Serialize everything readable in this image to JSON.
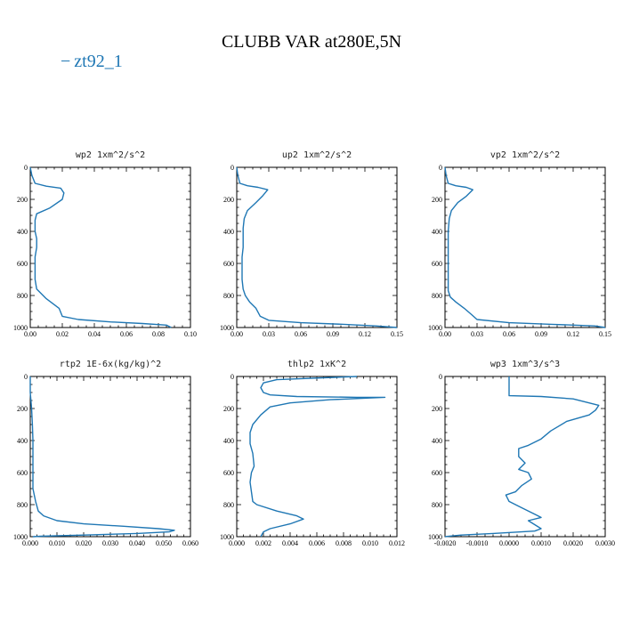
{
  "title": "CLUBB VAR at280E,5N",
  "legend": {
    "label": "zt92_1",
    "dash": "−",
    "color": "#1f77b4"
  },
  "chart_data": [
    {
      "type": "line",
      "title": "wp2  1xm^2/s^2",
      "xlim": [
        0,
        0.1
      ],
      "ylim": [
        1000,
        0
      ],
      "xticks": [
        0.0,
        0.02,
        0.04,
        0.06,
        0.08,
        0.1
      ],
      "xtick_labels": [
        "0.00",
        "0.02",
        "0.04",
        "0.06",
        "0.08",
        "0.10"
      ],
      "yticks": [
        0,
        200,
        400,
        600,
        800,
        1000
      ],
      "ytick_labels": [
        "0",
        "200",
        "400",
        "600",
        "800",
        "1000"
      ],
      "series": [
        {
          "color": "#1f77b4",
          "x": [
            0.0,
            0.001,
            0.003,
            0.01,
            0.019,
            0.021,
            0.02,
            0.012,
            0.004,
            0.003,
            0.003,
            0.004,
            0.004,
            0.003,
            0.003,
            0.003,
            0.003,
            0.004,
            0.01,
            0.018,
            0.02,
            0.03,
            0.05,
            0.07,
            0.085,
            0.088
          ],
          "y": [
            0,
            50,
            100,
            118,
            130,
            160,
            200,
            255,
            290,
            330,
            400,
            445,
            500,
            560,
            600,
            650,
            700,
            760,
            820,
            880,
            930,
            950,
            965,
            975,
            985,
            1000
          ]
        }
      ]
    },
    {
      "type": "line",
      "title": "up2  1xm^2/s^2",
      "xlim": [
        0,
        0.15
      ],
      "ylim": [
        1000,
        0
      ],
      "xticks": [
        0.0,
        0.03,
        0.06,
        0.09,
        0.12,
        0.15
      ],
      "xtick_labels": [
        "0.00",
        "0.03",
        "0.06",
        "0.09",
        "0.12",
        "0.15"
      ],
      "yticks": [
        0,
        200,
        400,
        600,
        800,
        1000
      ],
      "ytick_labels": [
        "0",
        "200",
        "400",
        "600",
        "800",
        "1000"
      ],
      "series": [
        {
          "color": "#1f77b4",
          "x": [
            0.0,
            0.001,
            0.003,
            0.01,
            0.02,
            0.029,
            0.024,
            0.018,
            0.01,
            0.007,
            0.006,
            0.006,
            0.006,
            0.005,
            0.005,
            0.005,
            0.006,
            0.008,
            0.012,
            0.018,
            0.022,
            0.03,
            0.06,
            0.1,
            0.13,
            0.15
          ],
          "y": [
            0,
            50,
            100,
            115,
            125,
            140,
            180,
            220,
            270,
            320,
            380,
            450,
            500,
            560,
            620,
            700,
            760,
            800,
            840,
            880,
            930,
            955,
            970,
            980,
            990,
            1000
          ]
        }
      ]
    },
    {
      "type": "line",
      "title": "vp2  1xm^2/s^2",
      "xlim": [
        0,
        0.15
      ],
      "ylim": [
        1000,
        0
      ],
      "xticks": [
        0.0,
        0.03,
        0.06,
        0.09,
        0.12,
        0.15
      ],
      "xtick_labels": [
        "0.00",
        "0.03",
        "0.06",
        "0.09",
        "0.12",
        "0.15"
      ],
      "yticks": [
        0,
        200,
        400,
        600,
        800,
        1000
      ],
      "ytick_labels": [
        "0",
        "200",
        "400",
        "600",
        "800",
        "1000"
      ],
      "series": [
        {
          "color": "#1f77b4",
          "x": [
            0.0,
            0.001,
            0.003,
            0.01,
            0.02,
            0.026,
            0.02,
            0.012,
            0.006,
            0.004,
            0.003,
            0.003,
            0.003,
            0.003,
            0.003,
            0.003,
            0.005,
            0.01,
            0.018,
            0.025,
            0.03,
            0.06,
            0.1,
            0.14,
            0.15
          ],
          "y": [
            0,
            50,
            100,
            115,
            125,
            140,
            180,
            220,
            270,
            320,
            400,
            470,
            550,
            620,
            700,
            770,
            810,
            840,
            880,
            920,
            950,
            970,
            980,
            990,
            1000
          ]
        }
      ]
    },
    {
      "type": "line",
      "title": "rtp2  1E-6x(kg/kg)^2",
      "xlim": [
        0,
        0.06
      ],
      "ylim": [
        1000,
        0
      ],
      "xticks": [
        0.0,
        0.01,
        0.02,
        0.03,
        0.04,
        0.05,
        0.06
      ],
      "xtick_labels": [
        "0.000",
        "0.010",
        "0.020",
        "0.030",
        "0.040",
        "0.050",
        "0.060"
      ],
      "yticks": [
        0,
        200,
        400,
        600,
        800,
        1000
      ],
      "ytick_labels": [
        "0",
        "200",
        "400",
        "600",
        "800",
        "1000"
      ],
      "series": [
        {
          "color": "#1f77b4",
          "x": [
            0.0,
            0.0,
            0.0005,
            0.0008,
            0.001,
            0.001,
            0.001,
            0.001,
            0.002,
            0.003,
            0.005,
            0.01,
            0.02,
            0.035,
            0.048,
            0.054,
            0.052,
            0.04,
            0.02,
            0.004,
            0.001
          ],
          "y": [
            0,
            100,
            200,
            300,
            400,
            500,
            600,
            700,
            780,
            840,
            870,
            900,
            920,
            935,
            950,
            960,
            970,
            980,
            990,
            997,
            1000
          ]
        }
      ]
    },
    {
      "type": "line",
      "title": "thlp2  1xK^2",
      "xlim": [
        0,
        0.012
      ],
      "ylim": [
        1000,
        0
      ],
      "xticks": [
        0.0,
        0.002,
        0.004,
        0.006,
        0.008,
        0.01,
        0.012
      ],
      "xtick_labels": [
        "0.000",
        "0.002",
        "0.004",
        "0.006",
        "0.008",
        "0.010",
        "0.012"
      ],
      "yticks": [
        0,
        200,
        400,
        600,
        800,
        1000
      ],
      "ytick_labels": [
        "0",
        "200",
        "400",
        "600",
        "800",
        "1000"
      ],
      "series": [
        {
          "color": "#1f77b4",
          "x": [
            0.009,
            0.003,
            0.002,
            0.0018,
            0.002,
            0.0025,
            0.0045,
            0.009,
            0.0111,
            0.007,
            0.004,
            0.0025,
            0.0018,
            0.0012,
            0.001,
            0.001,
            0.0012,
            0.0013,
            0.0011,
            0.001,
            0.0011,
            0.0012,
            0.0015,
            0.003,
            0.0045,
            0.005,
            0.004,
            0.0025,
            0.002,
            0.0018
          ],
          "y": [
            0,
            20,
            40,
            70,
            100,
            115,
            125,
            130,
            130,
            145,
            165,
            190,
            240,
            300,
            350,
            420,
            480,
            560,
            600,
            660,
            720,
            780,
            800,
            840,
            870,
            890,
            920,
            950,
            970,
            1000
          ]
        }
      ]
    },
    {
      "type": "line",
      "title": "wp3  1xm^3/s^3",
      "xlim": [
        -0.002,
        0.003
      ],
      "ylim": [
        1000,
        0
      ],
      "xticks": [
        -0.002,
        -0.001,
        0.0,
        0.001,
        0.002,
        0.003
      ],
      "xtick_labels": [
        "-0.0020",
        "-0.0010",
        "0.0000",
        "0.0010",
        "0.0020",
        "0.0030"
      ],
      "yticks": [
        0,
        200,
        400,
        600,
        800,
        1000
      ],
      "ytick_labels": [
        "0",
        "200",
        "400",
        "600",
        "800",
        "1000"
      ],
      "series": [
        {
          "color": "#1f77b4",
          "x": [
            0.0,
            0.0,
            0.0,
            0.0,
            0.001,
            0.002,
            0.0028,
            0.0027,
            0.0025,
            0.0018,
            0.0013,
            0.001,
            0.0006,
            0.0003,
            0.0003,
            0.0005,
            0.0003,
            0.0006,
            0.0007,
            0.0004,
            0.0002,
            -0.0001,
            0.0,
            0.0004,
            0.0008,
            0.001,
            0.0006,
            0.001,
            0.0008,
            -0.0005,
            -0.0015,
            -0.002
          ],
          "y": [
            0,
            50,
            100,
            120,
            125,
            140,
            180,
            210,
            240,
            280,
            340,
            390,
            430,
            450,
            500,
            540,
            580,
            600,
            640,
            680,
            720,
            740,
            780,
            820,
            860,
            880,
            900,
            950,
            965,
            980,
            990,
            1000
          ]
        }
      ]
    }
  ]
}
